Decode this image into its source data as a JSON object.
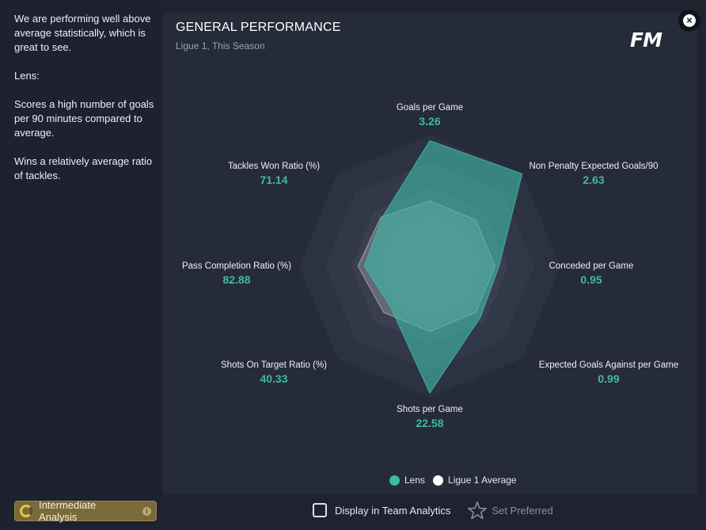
{
  "sidebar": {
    "paragraphs": [
      "We are performing well above average statistically, which is great to see.",
      "Lens:",
      "Scores a high number of goals per 90 minutes compared to average.",
      "Wins a relatively average ratio of tackles."
    ],
    "analysis_badge": "Intermediate Analysis"
  },
  "panel": {
    "title": "GENERAL PERFORMANCE",
    "subtitle": "Ligue 1, This Season",
    "logo": "FM"
  },
  "chart_data": {
    "type": "radar",
    "axes": [
      {
        "label": "Goals per Game",
        "value": "3.26"
      },
      {
        "label": "Non Penalty Expected Goals/90",
        "value": "2.63"
      },
      {
        "label": "Conceded per Game",
        "value": "0.95"
      },
      {
        "label": "Expected Goals Against per Game",
        "value": "0.99"
      },
      {
        "label": "Shots per Game",
        "value": "22.58"
      },
      {
        "label": "Shots On Target Ratio (%)",
        "value": "40.33"
      },
      {
        "label": "Pass Completion Ratio (%)",
        "value": "82.88"
      },
      {
        "label": "Tackles Won Ratio (%)",
        "value": "71.14"
      }
    ],
    "series": [
      {
        "name": "Lens",
        "color": "#3fb8a8",
        "relative": [
          0.96,
          1.0,
          0.53,
          0.55,
          0.97,
          0.43,
          0.5,
          0.52
        ]
      },
      {
        "name": "Ligue 1 Average",
        "color": "#ffffff",
        "relative": [
          0.5,
          0.5,
          0.5,
          0.5,
          0.5,
          0.5,
          0.55,
          0.53
        ]
      }
    ],
    "legend_position": "bottom"
  },
  "footer": {
    "display_label": "Display in Team Analytics",
    "preferred_label": "Set Preferred"
  }
}
